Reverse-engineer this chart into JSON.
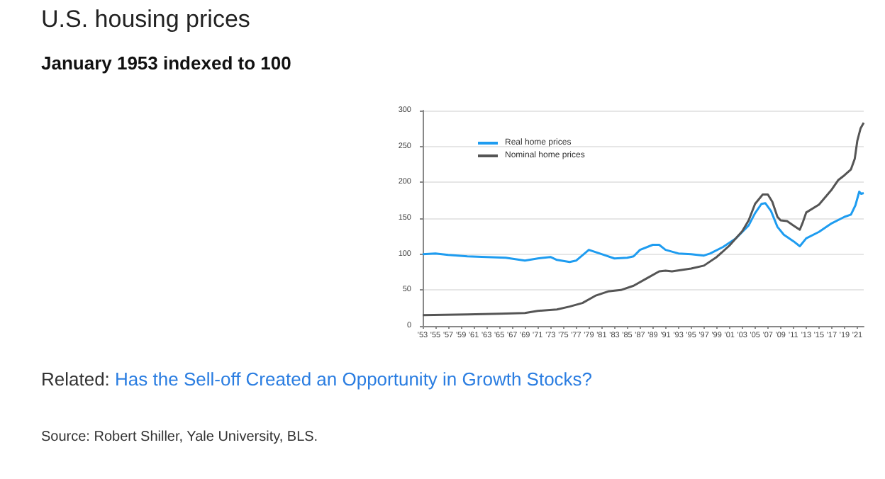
{
  "chart_data": {
    "type": "line",
    "title": "U.S. housing prices",
    "subtitle": "January 1953 indexed to 100",
    "annotations": [
      "Related: Has the Sell-off Created an Opportunity in Growth Stocks?",
      "Source: Robert Shiller, Yale University, BLS."
    ],
    "xlim": [
      1953,
      2022
    ],
    "xticks": [
      {
        "value": 1953,
        "label": "'53"
      },
      {
        "value": 1955,
        "label": "'55"
      },
      {
        "value": 1957,
        "label": "'57"
      },
      {
        "value": 1959,
        "label": "'59"
      },
      {
        "value": 1961,
        "label": "'61"
      },
      {
        "value": 1963,
        "label": "'63"
      },
      {
        "value": 1965,
        "label": "'65"
      },
      {
        "value": 1967,
        "label": "'67"
      },
      {
        "value": 1969,
        "label": "'69"
      },
      {
        "value": 1971,
        "label": "'71"
      },
      {
        "value": 1973,
        "label": "'73"
      },
      {
        "value": 1975,
        "label": "'75"
      },
      {
        "value": 1977,
        "label": "'77"
      },
      {
        "value": 1979,
        "label": "'79"
      },
      {
        "value": 1981,
        "label": "'81"
      },
      {
        "value": 1983,
        "label": "'83"
      },
      {
        "value": 1985,
        "label": "'85"
      },
      {
        "value": 1987,
        "label": "'87"
      },
      {
        "value": 1989,
        "label": "'89"
      },
      {
        "value": 1991,
        "label": "'91"
      },
      {
        "value": 1993,
        "label": "'93"
      },
      {
        "value": 1995,
        "label": "'95"
      },
      {
        "value": 1997,
        "label": "'97"
      },
      {
        "value": 1999,
        "label": "'99"
      },
      {
        "value": 2001,
        "label": "'01"
      },
      {
        "value": 2003,
        "label": "'03"
      },
      {
        "value": 2005,
        "label": "'05"
      },
      {
        "value": 2007,
        "label": "'07"
      },
      {
        "value": 2009,
        "label": "'09"
      },
      {
        "value": 2011,
        "label": "'11"
      },
      {
        "value": 2013,
        "label": "'13"
      },
      {
        "value": 2015,
        "label": "'15"
      },
      {
        "value": 2017,
        "label": "'17"
      },
      {
        "value": 2019,
        "label": "'19"
      },
      {
        "value": 2021,
        "label": "'21"
      }
    ],
    "ylim": [
      0,
      300
    ],
    "yticks": [
      0,
      50,
      100,
      150,
      200,
      250,
      300
    ],
    "grid": "y",
    "legend": "top left",
    "marker": "none",
    "line_style": "solid",
    "series": [
      {
        "name": "Real home prices",
        "color": "#1e9cf0",
        "x": [
          1953,
          1955,
          1957,
          1960,
          1963,
          1966,
          1969,
          1971,
          1973,
          1974,
          1976,
          1977,
          1979,
          1981,
          1983,
          1985,
          1986,
          1987,
          1989,
          1990,
          1991,
          1993,
          1995,
          1997,
          1998,
          2000,
          2002,
          2004,
          2005,
          2006,
          2006.6,
          2007.5,
          2008.5,
          2009.5,
          2011,
          2012,
          2013,
          2015,
          2017,
          2019,
          2020,
          2020.7,
          2021.3,
          2021.6,
          2022
        ],
        "values": [
          100,
          101,
          99,
          97,
          96,
          95,
          91,
          94,
          96,
          92,
          89,
          91,
          106,
          100,
          94,
          95,
          97,
          106,
          113,
          113,
          106,
          101,
          100,
          98,
          101,
          110,
          122,
          140,
          157,
          170,
          171,
          160,
          138,
          127,
          118,
          111,
          122,
          131,
          143,
          152,
          155,
          168,
          187,
          184,
          185
        ]
      },
      {
        "name": "Nominal home prices",
        "color": "#555555",
        "x": [
          1953,
          1960,
          1965,
          1969,
          1971,
          1974,
          1976,
          1978,
          1980,
          1982,
          1984,
          1986,
          1988,
          1990,
          1991,
          1992,
          1995,
          1997,
          1999,
          2001,
          2003,
          2004,
          2005,
          2006.2,
          2007,
          2007.7,
          2008.5,
          2009,
          2010,
          2011,
          2012,
          2012.5,
          2013,
          2015,
          2017,
          2018,
          2019,
          2020,
          2020.6,
          2021,
          2021.5,
          2022
        ],
        "values": [
          15,
          16,
          17,
          18,
          21,
          23,
          27,
          32,
          42,
          48,
          50,
          56,
          66,
          76,
          77,
          76,
          80,
          84,
          96,
          112,
          132,
          147,
          170,
          183,
          183,
          173,
          152,
          147,
          146,
          140,
          134,
          145,
          158,
          169,
          190,
          203,
          210,
          218,
          233,
          258,
          275,
          283
        ]
      }
    ]
  }
}
